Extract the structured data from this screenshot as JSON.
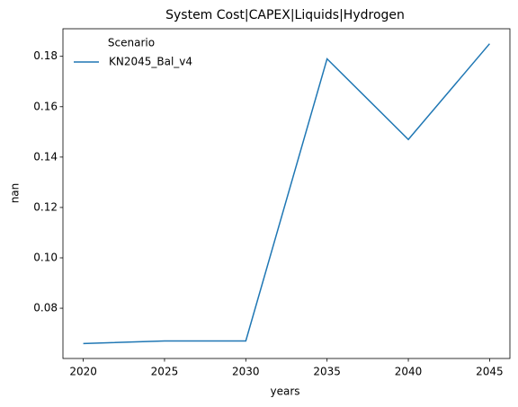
{
  "chart_data": {
    "type": "line",
    "title": "System Cost|CAPEX|Liquids|Hydrogen",
    "x_label": "years",
    "y_label": "nan",
    "x": [
      2020,
      2025,
      2030,
      2035,
      2040,
      2045
    ],
    "series": [
      {
        "name": "KN2045_Bal_v4",
        "color": "#1f77b4",
        "values": [
          0.066,
          0.067,
          0.067,
          0.179,
          0.147,
          0.185
        ]
      }
    ],
    "legend_title": "Scenario",
    "legend": "upper left",
    "xlim": [
      2018.75,
      2046.25
    ],
    "xticks": [
      2020,
      2025,
      2030,
      2035,
      2040,
      2045
    ],
    "ylim": [
      0.06005,
      0.19095
    ],
    "yticks": [
      0.08,
      {
        "value": 0.1,
        "label": "0.10"
      },
      0.12,
      0.14,
      0.16,
      0.18
    ],
    "grid": false
  }
}
